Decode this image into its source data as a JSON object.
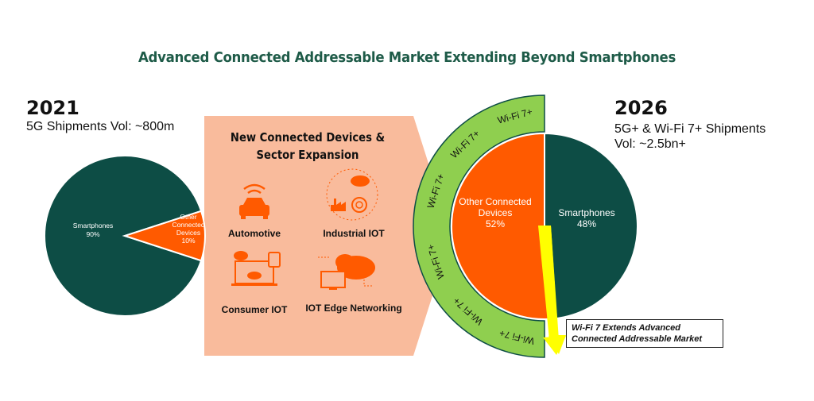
{
  "title": "Advanced Connected Addressable Market Extending Beyond Smartphones",
  "left": {
    "year": "2021",
    "subtitle": "5G Shipments Vol: ~800m"
  },
  "right": {
    "year": "2026",
    "subtitle_line1": "5G+ & Wi-Fi 7+ Shipments",
    "subtitle_line2": "Vol: ~2.5bn+"
  },
  "panel": {
    "title_line1": "New Connected Devices &",
    "title_line2": "Sector Expansion",
    "sectors": [
      {
        "label": "Automotive",
        "icon": "car-wifi-icon"
      },
      {
        "label": "Industrial IOT",
        "icon": "factory-cloud-icon"
      },
      {
        "label": "Consumer IOT",
        "icon": "laptop-watch-icon"
      },
      {
        "label": "IOT Edge Networking",
        "icon": "monitor-cloud-code-icon"
      }
    ]
  },
  "ring_label": "Wi-Fi 7+",
  "callout": {
    "line1": "Wi-Fi 7 Extends Advanced",
    "line2": "Connected Addressable Market"
  },
  "colors": {
    "dark_green": "#0d4d45",
    "orange": "#ff5a00",
    "ring_green": "#8fcf4f",
    "panel": "#f9bb9c",
    "yellow": "#ffff00",
    "title": "#1e5b48"
  },
  "chart_data": [
    {
      "type": "pie",
      "title": "2021",
      "slices": [
        {
          "label_line1": "Smartphones",
          "label_line2": "",
          "label_line3": "",
          "value": 90,
          "pct": "90%",
          "color": "#0d4d45"
        },
        {
          "label_line1": "Other",
          "label_line2": "Connected",
          "label_line3": "Devices",
          "value": 10,
          "pct": "10%",
          "color": "#ff5a00"
        }
      ]
    },
    {
      "type": "pie",
      "title": "2026",
      "slices": [
        {
          "label_line1": "Smartphones",
          "label_line2": "",
          "value": 48,
          "pct": "48%",
          "color": "#0d4d45"
        },
        {
          "label_line1": "Other Connected",
          "label_line2": "Devices",
          "value": 52,
          "pct": "52%",
          "color": "#ff5a00"
        }
      ]
    }
  ]
}
